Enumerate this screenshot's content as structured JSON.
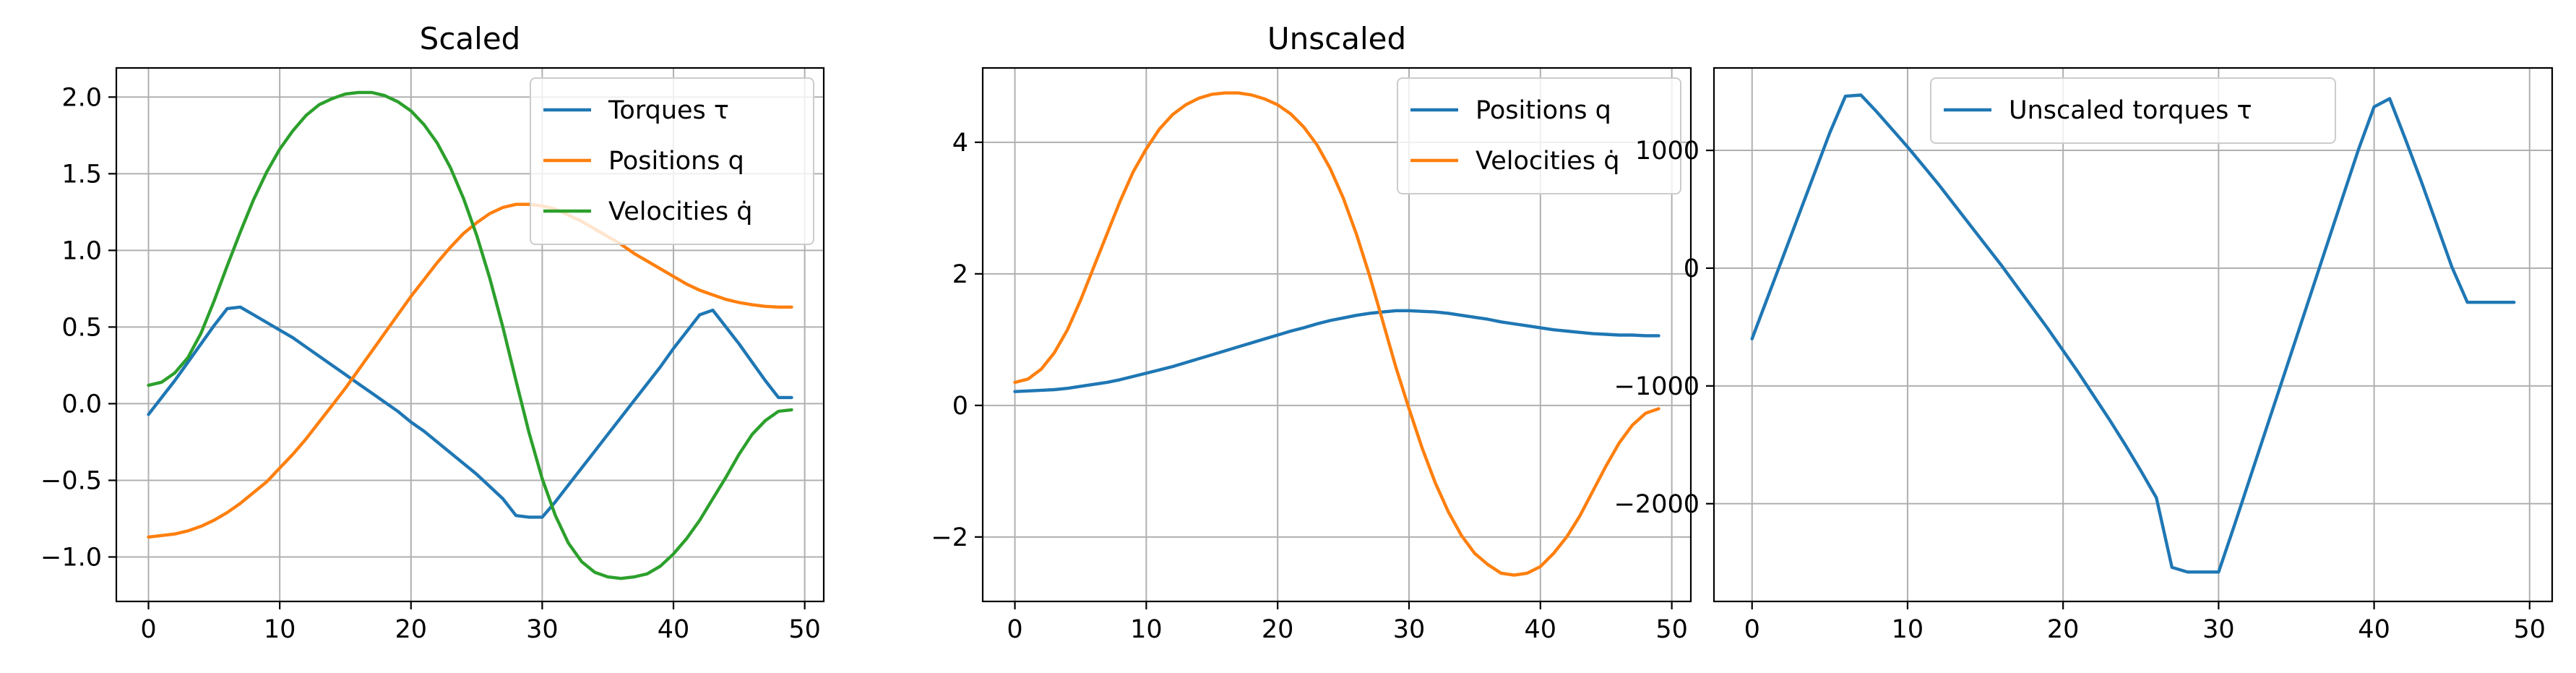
{
  "chart_data": [
    {
      "type": "line",
      "title": "Scaled",
      "xlabel": "",
      "ylabel": "",
      "xlim": [
        -2.45,
        51.45
      ],
      "ylim": [
        -1.29,
        2.19
      ],
      "xticks": [
        0,
        10,
        20,
        30,
        40,
        50
      ],
      "xtick_labels": [
        "0",
        "10",
        "20",
        "30",
        "40",
        "50"
      ],
      "yticks": [
        -1.0,
        -0.5,
        0.0,
        0.5,
        1.0,
        1.5,
        2.0
      ],
      "ytick_labels": [
        "−1.0",
        "−0.5",
        "0.0",
        "0.5",
        "1.0",
        "1.5",
        "2.0"
      ],
      "grid": true,
      "legend": "upper right",
      "x": [
        0,
        1,
        2,
        3,
        4,
        5,
        6,
        7,
        8,
        9,
        10,
        11,
        12,
        13,
        14,
        15,
        16,
        17,
        18,
        19,
        20,
        21,
        22,
        23,
        24,
        25,
        26,
        27,
        28,
        29,
        30,
        31,
        32,
        33,
        34,
        35,
        36,
        37,
        38,
        39,
        40,
        41,
        42,
        43,
        44,
        45,
        46,
        47,
        48,
        49
      ],
      "series": [
        {
          "name": "Torques τ",
          "color": "#1f77b4",
          "values": [
            -0.07,
            0.04,
            0.15,
            0.27,
            0.39,
            0.51,
            0.62,
            0.63,
            0.58,
            0.53,
            0.48,
            0.43,
            0.37,
            0.31,
            0.25,
            0.19,
            0.13,
            0.07,
            0.01,
            -0.05,
            -0.12,
            -0.18,
            -0.25,
            -0.32,
            -0.39,
            -0.46,
            -0.54,
            -0.62,
            -0.73,
            -0.74,
            -0.74,
            -0.64,
            -0.53,
            -0.42,
            -0.31,
            -0.2,
            -0.09,
            0.02,
            0.13,
            0.24,
            0.36,
            0.47,
            0.58,
            0.61,
            0.5,
            0.39,
            0.27,
            0.15,
            0.04,
            0.04
          ]
        },
        {
          "name": "Positions q",
          "color": "#ff7f0e",
          "values": [
            -0.87,
            -0.86,
            -0.85,
            -0.83,
            -0.8,
            -0.76,
            -0.71,
            -0.65,
            -0.58,
            -0.51,
            -0.42,
            -0.33,
            -0.23,
            -0.12,
            -0.01,
            0.1,
            0.22,
            0.34,
            0.46,
            0.58,
            0.7,
            0.81,
            0.92,
            1.02,
            1.11,
            1.18,
            1.24,
            1.28,
            1.3,
            1.3,
            1.29,
            1.27,
            1.23,
            1.19,
            1.14,
            1.09,
            1.04,
            0.98,
            0.93,
            0.88,
            0.83,
            0.78,
            0.74,
            0.71,
            0.68,
            0.66,
            0.645,
            0.635,
            0.63,
            0.63
          ]
        },
        {
          "name": "Velocities q̇",
          "color": "#2ca02c",
          "values": [
            0.12,
            0.14,
            0.2,
            0.3,
            0.46,
            0.67,
            0.9,
            1.12,
            1.33,
            1.51,
            1.66,
            1.78,
            1.88,
            1.95,
            1.99,
            2.02,
            2.03,
            2.03,
            2.01,
            1.97,
            1.91,
            1.82,
            1.7,
            1.54,
            1.34,
            1.1,
            0.82,
            0.5,
            0.15,
            -0.19,
            -0.49,
            -0.73,
            -0.91,
            -1.03,
            -1.1,
            -1.13,
            -1.14,
            -1.13,
            -1.11,
            -1.06,
            -0.98,
            -0.88,
            -0.76,
            -0.62,
            -0.48,
            -0.33,
            -0.2,
            -0.11,
            -0.05,
            -0.04
          ]
        }
      ]
    },
    {
      "type": "line",
      "title": "Unscaled",
      "xlabel": "",
      "ylabel": "",
      "xlim": [
        -2.45,
        51.45
      ],
      "ylim": [
        -2.98,
        5.13
      ],
      "xticks": [
        0,
        10,
        20,
        30,
        40,
        50
      ],
      "xtick_labels": [
        "0",
        "10",
        "20",
        "30",
        "40",
        "50"
      ],
      "yticks": [
        -2,
        0,
        2,
        4
      ],
      "ytick_labels": [
        "−2",
        "0",
        "2",
        "4"
      ],
      "grid": true,
      "legend": "upper right",
      "x": [
        0,
        1,
        2,
        3,
        4,
        5,
        6,
        7,
        8,
        9,
        10,
        11,
        12,
        13,
        14,
        15,
        16,
        17,
        18,
        19,
        20,
        21,
        22,
        23,
        24,
        25,
        26,
        27,
        28,
        29,
        30,
        31,
        32,
        33,
        34,
        35,
        36,
        37,
        38,
        39,
        40,
        41,
        42,
        43,
        44,
        45,
        46,
        47,
        48,
        49
      ],
      "series": [
        {
          "name": "Positions q",
          "color": "#1f77b4",
          "values": [
            0.21,
            0.22,
            0.23,
            0.24,
            0.26,
            0.29,
            0.32,
            0.35,
            0.39,
            0.44,
            0.49,
            0.54,
            0.59,
            0.65,
            0.71,
            0.77,
            0.83,
            0.89,
            0.95,
            1.01,
            1.07,
            1.13,
            1.18,
            1.24,
            1.29,
            1.33,
            1.37,
            1.4,
            1.42,
            1.44,
            1.44,
            1.43,
            1.42,
            1.4,
            1.37,
            1.34,
            1.31,
            1.27,
            1.24,
            1.21,
            1.18,
            1.15,
            1.13,
            1.11,
            1.09,
            1.08,
            1.07,
            1.07,
            1.06,
            1.06
          ]
        },
        {
          "name": "Velocities q̇",
          "color": "#ff7f0e",
          "values": [
            0.35,
            0.4,
            0.55,
            0.8,
            1.15,
            1.6,
            2.1,
            2.6,
            3.1,
            3.55,
            3.9,
            4.2,
            4.42,
            4.57,
            4.67,
            4.73,
            4.75,
            4.75,
            4.72,
            4.66,
            4.57,
            4.43,
            4.23,
            3.96,
            3.6,
            3.15,
            2.6,
            1.97,
            1.28,
            0.58,
            -0.05,
            -0.65,
            -1.18,
            -1.62,
            -1.98,
            -2.25,
            -2.42,
            -2.55,
            -2.58,
            -2.55,
            -2.45,
            -2.25,
            -2.0,
            -1.68,
            -1.3,
            -0.92,
            -0.57,
            -0.3,
            -0.12,
            -0.05
          ]
        }
      ]
    },
    {
      "type": "line",
      "title": "",
      "xlabel": "",
      "ylabel": "",
      "xlim": [
        -2.45,
        51.45
      ],
      "ylim": [
        -2830,
        1700
      ],
      "xticks": [
        0,
        10,
        20,
        30,
        40,
        50
      ],
      "xtick_labels": [
        "0",
        "10",
        "20",
        "30",
        "40",
        "50"
      ],
      "yticks": [
        -2000,
        -1000,
        0,
        1000
      ],
      "ytick_labels": [
        "−2000",
        "−1000",
        "0",
        "1000"
      ],
      "grid": true,
      "legend": "upper center",
      "x": [
        0,
        1,
        2,
        3,
        4,
        5,
        6,
        7,
        8,
        9,
        10,
        11,
        12,
        13,
        14,
        15,
        16,
        17,
        18,
        19,
        20,
        21,
        22,
        23,
        24,
        25,
        26,
        27,
        28,
        29,
        30,
        31,
        32,
        33,
        34,
        35,
        36,
        37,
        38,
        39,
        40,
        41,
        42,
        43,
        44,
        45,
        46,
        47,
        48,
        49
      ],
      "series": [
        {
          "name": "Unscaled torques τ",
          "color": "#1f77b4",
          "values": [
            -600,
            -250,
            100,
            450,
            800,
            1150,
            1460,
            1470,
            1330,
            1180,
            1030,
            870,
            710,
            540,
            370,
            200,
            30,
            -150,
            -330,
            -510,
            -700,
            -890,
            -1090,
            -1290,
            -1500,
            -1720,
            -1950,
            -2540,
            -2580,
            -2580,
            -2580,
            -2190,
            -1790,
            -1390,
            -990,
            -590,
            -190,
            210,
            610,
            1010,
            1370,
            1440,
            1100,
            750,
            380,
            10,
            -290,
            -290,
            -290,
            -290
          ]
        }
      ]
    }
  ]
}
